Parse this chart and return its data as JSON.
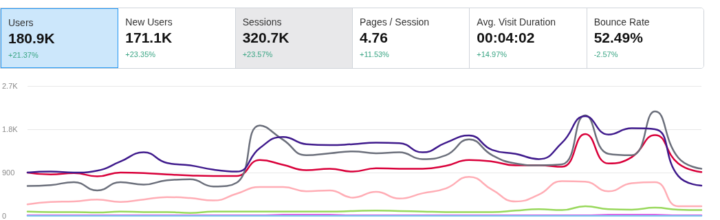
{
  "chart_data": [
    {
      "type": "other",
      "categories": [
        "Users",
        "New Users",
        "Sessions",
        "Pages / Session",
        "Avg. Visit Duration",
        "Bounce Rate"
      ],
      "annotations": [
        "180.9K",
        "+21.37%",
        "171.1K",
        "+23.35%",
        "320.7K",
        "+23.57%",
        "4.76",
        "+11.53%",
        "00:04:02",
        "+14.97%",
        "52.49%",
        "-2.57%"
      ],
      "colors": [
        "#cce7fb",
        "#ffffff",
        "#e8e8ea",
        "#ffffff",
        "#ffffff",
        "#ffffff"
      ]
    },
    {
      "type": "line",
      "categories": [
        null,
        null,
        null,
        null,
        null,
        null,
        null,
        null,
        null,
        null,
        null,
        null,
        null,
        null,
        null,
        null,
        null,
        null,
        null,
        null,
        null,
        null,
        null,
        null,
        null,
        null,
        null,
        null,
        null,
        null
      ],
      "series": [
        {
          "color": "#ffadb5",
          "values": [
            240,
            290,
            300,
            340,
            290,
            340,
            390,
            370,
            320,
            460,
            600,
            600,
            510,
            530,
            380,
            500,
            360,
            470,
            570,
            810,
            540,
            300,
            440,
            720,
            710,
            510,
            680,
            700,
            200,
            200
          ]
        },
        {
          "color": "#98d85b",
          "values": [
            90,
            80,
            80,
            70,
            90,
            80,
            80,
            60,
            90,
            90,
            90,
            90,
            90,
            90,
            100,
            110,
            100,
            90,
            80,
            80,
            80,
            110,
            140,
            120,
            200,
            140,
            130,
            170,
            130,
            120
          ]
        },
        {
          "color": "#e040e0",
          "values": [
            10,
            10,
            10,
            10,
            10,
            10,
            10,
            10,
            10,
            10,
            10,
            20,
            20,
            20,
            10,
            10,
            10,
            10,
            10,
            10,
            10,
            10,
            10,
            10,
            10,
            20,
            20,
            20,
            10,
            10
          ]
        },
        {
          "color": "#d9003a",
          "values": [
            900,
            860,
            890,
            820,
            900,
            890,
            860,
            840,
            830,
            830,
            1160,
            1060,
            950,
            980,
            920,
            990,
            980,
            980,
            1040,
            1160,
            1130,
            1050,
            1050,
            1020,
            1700,
            1090,
            1220,
            1680,
            1090,
            910
          ]
        },
        {
          "color": "#6b6f7b",
          "values": [
            620,
            640,
            700,
            530,
            700,
            650,
            740,
            760,
            610,
            690,
            1880,
            1580,
            1260,
            1300,
            1340,
            1300,
            1320,
            1180,
            1260,
            1590,
            1260,
            1090,
            1050,
            1070,
            2090,
            1290,
            1260,
            2170,
            1210,
            980
          ]
        },
        {
          "color": "#3f1a8c",
          "values": [
            900,
            920,
            900,
            940,
            1130,
            1320,
            1100,
            1050,
            960,
            920,
            1410,
            1640,
            1490,
            1470,
            1490,
            1520,
            1510,
            1320,
            1520,
            1670,
            1370,
            1290,
            1180,
            1520,
            2070,
            1690,
            1820,
            1800,
            830,
            630
          ]
        },
        {
          "color": "#7ec8f0",
          "values": [
            0,
            0,
            0,
            0,
            0,
            0,
            0,
            0,
            0,
            0,
            0,
            0,
            0,
            0,
            0,
            0,
            0,
            0,
            0,
            0,
            0,
            0,
            0,
            0,
            0,
            0,
            0,
            0,
            0,
            0
          ]
        }
      ],
      "ylim": [
        0,
        2700
      ],
      "yticks": [
        0,
        900,
        {
          "value": 1800,
          "label": "1.8K"
        },
        {
          "value": 2700,
          "label": "2.7K"
        }
      ],
      "grid": "y",
      "tick_labels": "y",
      "marker": "none",
      "line_style": "solid"
    }
  ]
}
